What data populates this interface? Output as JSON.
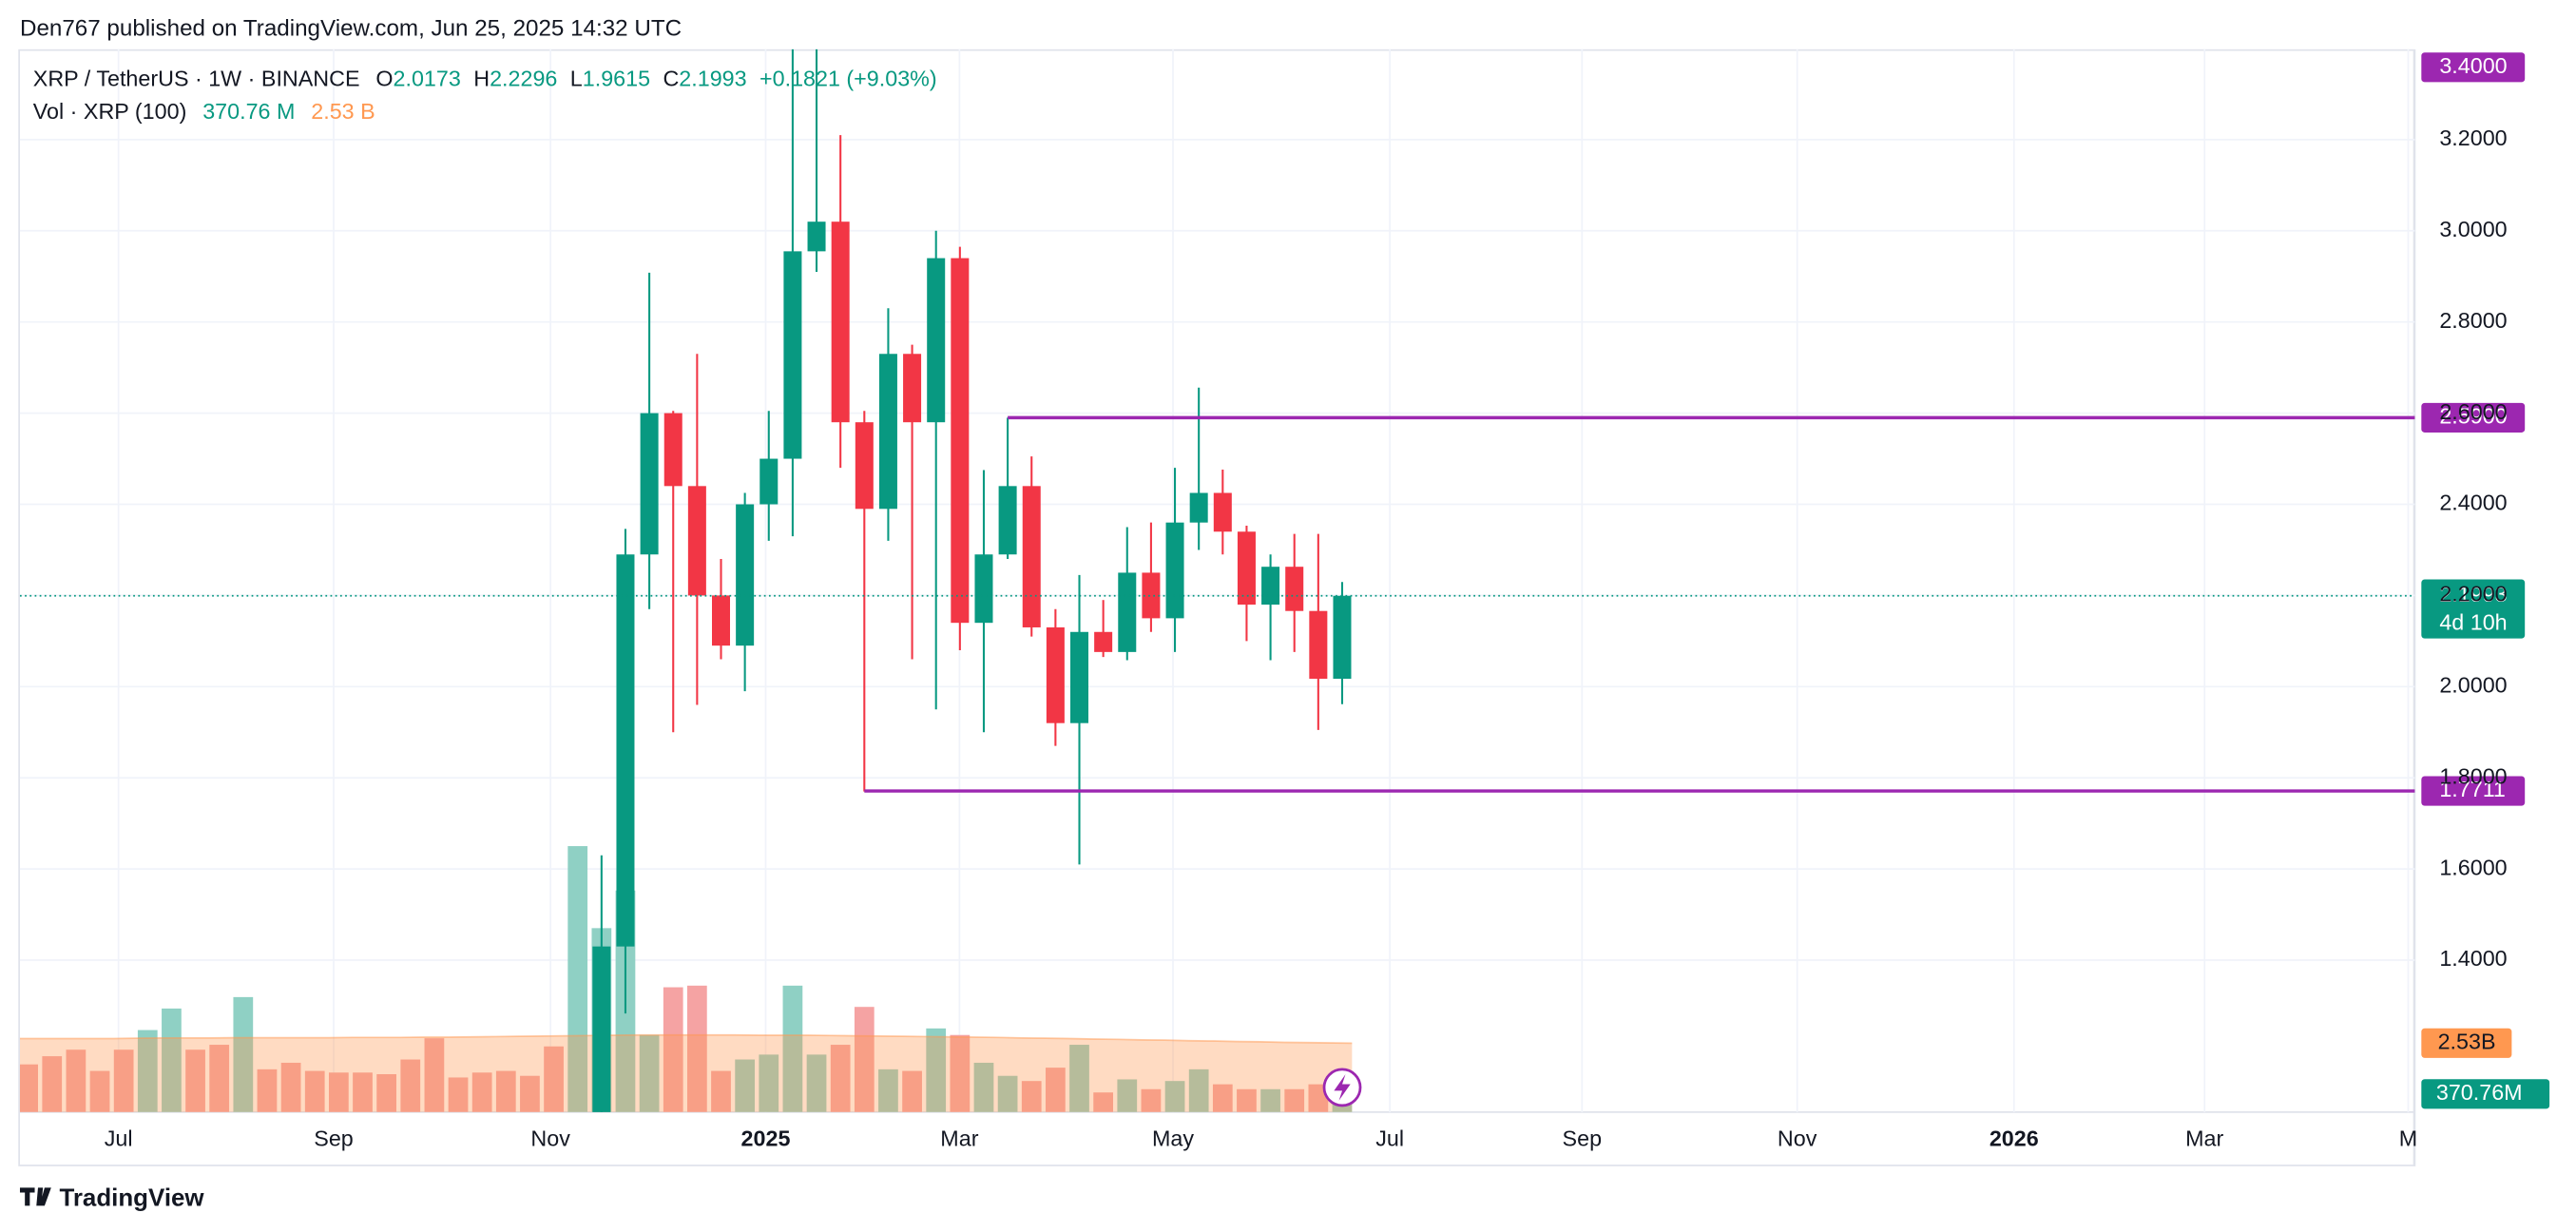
{
  "attribution": "Den767 published on TradingView.com, Jun 25, 2025 14:32 UTC",
  "footer": "TradingView",
  "chart_data": {
    "type": "candlestick",
    "symbol": "XRP / TetherUS · 1W · BINANCE",
    "ohlc_letters": [
      "O",
      "H",
      "L",
      "C"
    ],
    "change": "+0.1821 (+9.03%)",
    "countdown": "4d 10h",
    "up_color": "#089981",
    "down_color": "#f23645",
    "open": [
      null,
      null,
      null,
      null,
      null,
      null,
      null,
      null,
      null,
      null,
      null,
      null,
      null,
      null,
      null,
      null,
      null,
      null,
      null,
      null,
      null,
      null,
      null,
      null,
      1.05,
      1.43,
      2.29,
      2.6,
      2.44,
      2.2,
      2.09,
      2.4,
      2.5,
      2.955,
      3.02,
      2.58,
      2.39,
      2.73,
      2.58,
      2.94,
      2.14,
      2.29,
      2.44,
      2.13,
      1.92,
      2.12,
      2.076,
      2.25,
      2.15,
      2.36,
      2.425,
      2.34,
      2.18,
      2.263,
      2.166,
      2.0173
    ],
    "high": [
      null,
      null,
      null,
      null,
      null,
      null,
      null,
      null,
      null,
      null,
      null,
      null,
      null,
      null,
      null,
      null,
      null,
      null,
      null,
      null,
      null,
      null,
      null,
      null,
      1.63,
      2.346,
      2.908,
      2.605,
      2.73,
      2.28,
      2.425,
      2.605,
      3.4,
      3.4,
      3.21,
      2.605,
      2.83,
      2.75,
      3.0,
      2.965,
      2.475,
      2.59,
      2.505,
      2.17,
      2.245,
      2.19,
      2.35,
      2.36,
      2.48,
      2.656,
      2.476,
      2.353,
      2.29,
      2.335,
      2.335,
      2.2296
    ],
    "low": [
      null,
      null,
      null,
      null,
      null,
      null,
      null,
      null,
      null,
      null,
      null,
      null,
      null,
      null,
      null,
      null,
      null,
      null,
      null,
      null,
      null,
      null,
      null,
      null,
      1.0,
      1.283,
      2.17,
      1.9,
      1.96,
      2.06,
      1.99,
      2.32,
      2.33,
      2.91,
      2.48,
      1.77,
      2.32,
      2.06,
      1.95,
      2.08,
      1.9,
      2.28,
      2.11,
      1.87,
      1.61,
      2.065,
      2.058,
      2.12,
      2.076,
      2.3,
      2.29,
      2.1,
      2.058,
      2.076,
      1.905,
      1.9615
    ],
    "close": [
      null,
      null,
      null,
      null,
      null,
      null,
      null,
      null,
      null,
      null,
      null,
      null,
      null,
      null,
      null,
      null,
      null,
      null,
      null,
      null,
      null,
      null,
      null,
      null,
      1.43,
      2.29,
      2.6,
      2.44,
      2.2,
      2.09,
      2.4,
      2.5,
      2.955,
      3.02,
      2.58,
      2.39,
      2.73,
      2.58,
      2.94,
      2.14,
      2.29,
      2.44,
      2.13,
      1.92,
      2.12,
      2.076,
      2.25,
      2.15,
      2.36,
      2.425,
      2.34,
      2.18,
      2.263,
      2.166,
      2.0173,
      2.1993
    ],
    "ylim": [
      1.0667,
      3.3982
    ],
    "yticks": [
      {
        "value": 3.2,
        "label": "3.2000"
      },
      {
        "value": 3.0,
        "label": "3.0000"
      },
      {
        "value": 2.8,
        "label": "2.8000"
      },
      {
        "value": 2.6,
        "label": "2.6000"
      },
      {
        "value": 2.4,
        "label": "2.4000"
      },
      {
        "value": 2.2,
        "label": "2.2000"
      },
      {
        "value": 2.0,
        "label": "2.0000"
      },
      {
        "value": 1.8,
        "label": "1.8000"
      },
      {
        "value": 1.6,
        "label": "1.6000"
      },
      {
        "value": 1.4,
        "label": "1.4000"
      }
    ],
    "xticks": [
      "Jul",
      "Sep",
      "Nov",
      "2025",
      "Mar",
      "May",
      "Jul",
      "Sep",
      "Nov",
      "2026",
      "Mar",
      "M"
    ],
    "grid": true,
    "levels": [
      {
        "value": 3.4,
        "label": "3.4000"
      },
      {
        "value": 2.59,
        "label": "2.5900"
      },
      {
        "value": 1.7711
      }
    ],
    "level_color": "#9c27b0",
    "volume": {
      "name": "Vol · XRP (100)",
      "legend_values": [
        "370.76 M",
        "2.53 B"
      ],
      "ylim": [
        0,
        39
      ],
      "values": [
        1.75,
        2.05,
        2.29,
        1.51,
        2.29,
        3.01,
        3.8,
        2.29,
        2.47,
        4.22,
        1.57,
        1.81,
        1.51,
        1.45,
        1.45,
        1.39,
        1.93,
        2.71,
        1.27,
        1.45,
        1.51,
        1.33,
        2.41,
        9.76,
        6.75,
        8.13,
        2.83,
        4.58,
        4.64,
        1.51,
        1.93,
        2.11,
        4.64,
        2.11,
        2.47,
        3.86,
        1.57,
        1.51,
        3.07,
        2.83,
        1.81,
        1.33,
        1.14,
        1.63,
        2.47,
        0.72,
        1.2,
        0.84,
        1.14,
        1.57,
        1.02,
        0.84,
        0.84,
        0.84,
        1.02,
        0.37076
      ],
      "last_label": "370.76M",
      "colors": [
        "#f5a3a3",
        "#f5a3a3",
        "#f5a3a3",
        "#f5a3a3",
        "#f5a3a3",
        "#8fd0c4",
        "#8fd0c4",
        "#f5a3a3",
        "#f5a3a3",
        "#8fd0c4",
        "#f5a3a3",
        "#f5a3a3",
        "#f5a3a3",
        "#f5a3a3",
        "#f5a3a3",
        "#f5a3a3",
        "#f5a3a3",
        "#f5a3a3",
        "#f5a3a3",
        "#f5a3a3",
        "#f5a3a3",
        "#f5a3a3",
        "#f5a3a3",
        "#8fd0c4",
        "#8fd0c4",
        "#8fd0c4",
        "#8fd0c4",
        "#f5a3a3",
        "#f5a3a3",
        "#f5a3a3",
        "#8fd0c4",
        "#8fd0c4",
        "#8fd0c4",
        "#8fd0c4",
        "#f5a3a3",
        "#f5a3a3",
        "#8fd0c4",
        "#f5a3a3",
        "#8fd0c4",
        "#f5a3a3",
        "#8fd0c4",
        "#8fd0c4",
        "#f5a3a3",
        "#f5a3a3",
        "#8fd0c4",
        "#f5a3a3",
        "#8fd0c4",
        "#f5a3a3",
        "#8fd0c4",
        "#8fd0c4",
        "#f5a3a3",
        "#f5a3a3",
        "#8fd0c4",
        "#f5a3a3",
        "#f5a3a3",
        "#8fd0c4"
      ],
      "ma_values": [
        2.7,
        2.7,
        2.7,
        2.7,
        2.7,
        2.71,
        2.72,
        2.72,
        2.72,
        2.73,
        2.73,
        2.73,
        2.73,
        2.73,
        2.74,
        2.74,
        2.74,
        2.75,
        2.75,
        2.76,
        2.77,
        2.78,
        2.79,
        2.8,
        2.81,
        2.82,
        2.83,
        2.83,
        2.83,
        2.83,
        2.83,
        2.82,
        2.82,
        2.82,
        2.81,
        2.8,
        2.79,
        2.78,
        2.77,
        2.76,
        2.75,
        2.74,
        2.72,
        2.71,
        2.7,
        2.68,
        2.67,
        2.65,
        2.64,
        2.62,
        2.61,
        2.59,
        2.58,
        2.56,
        2.55,
        2.53
      ],
      "ma_label": "2.53B",
      "ma_color": "#ff9850"
    }
  }
}
